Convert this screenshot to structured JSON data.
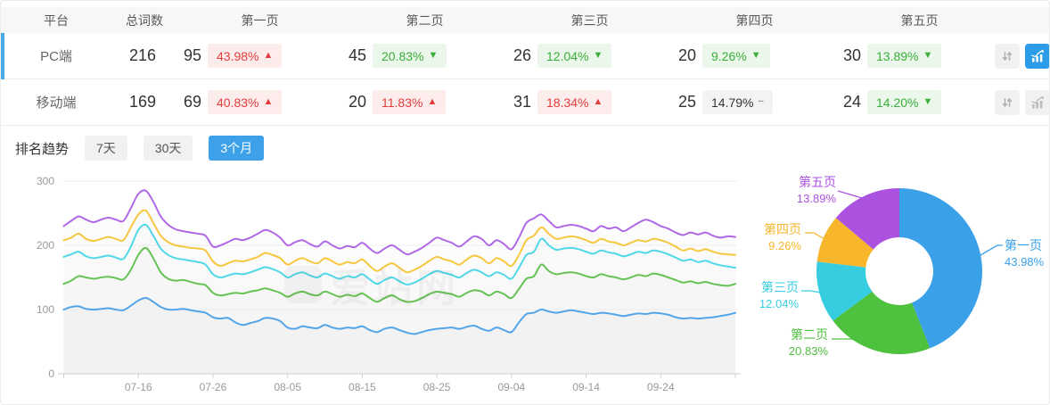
{
  "colors": {
    "accent_blue": "#3da1e9",
    "selected_row_bar": "#4aaae8",
    "up_red": "#e23c3c",
    "down_green": "#3aae3a",
    "active_icon_button": "#2d9ce8"
  },
  "watermark": "爱站网",
  "table": {
    "columns": [
      "平台",
      "总词数",
      "第一页",
      "第二页",
      "第三页",
      "第四页",
      "第五页"
    ],
    "sort_glyph": "↓↑",
    "rows": [
      {
        "platform": "PC端",
        "total": "216",
        "selected": true,
        "chart_active": true,
        "pages": [
          {
            "count": "95",
            "pct": "43.98%",
            "arrow": "▲",
            "tone": "red"
          },
          {
            "count": "45",
            "pct": "20.83%",
            "arrow": "▼",
            "tone": "green"
          },
          {
            "count": "26",
            "pct": "12.04%",
            "arrow": "▼",
            "tone": "green"
          },
          {
            "count": "20",
            "pct": "9.26%",
            "arrow": "▼",
            "tone": "green"
          },
          {
            "count": "30",
            "pct": "13.89%",
            "arrow": "▼",
            "tone": "green"
          }
        ]
      },
      {
        "platform": "移动端",
        "total": "169",
        "selected": false,
        "chart_active": false,
        "pages": [
          {
            "count": "69",
            "pct": "40.83%",
            "arrow": "▲",
            "tone": "red"
          },
          {
            "count": "20",
            "pct": "11.83%",
            "arrow": "▲",
            "tone": "red"
          },
          {
            "count": "31",
            "pct": "18.34%",
            "arrow": "▲",
            "tone": "red"
          },
          {
            "count": "25",
            "pct": "14.79%",
            "arrow": "−",
            "tone": "gray"
          },
          {
            "count": "24",
            "pct": "14.20%",
            "arrow": "▼",
            "tone": "green"
          }
        ]
      }
    ]
  },
  "trend": {
    "label": "排名趋势",
    "options": [
      {
        "label": "7天",
        "active": false
      },
      {
        "label": "30天",
        "active": false
      },
      {
        "label": "3个月",
        "active": true
      }
    ]
  },
  "chart_data": [
    {
      "type": "line",
      "title": "排名趋势 (3个月) — PC端 累计词数",
      "days": 90,
      "x_tick_days": [
        0,
        10,
        20,
        30,
        40,
        50,
        60,
        70,
        80,
        90
      ],
      "x_labels": [
        "07-16",
        "07-26",
        "08-05",
        "08-15",
        "08-25",
        "09-04",
        "09-14",
        "09-24"
      ],
      "x_label_days": [
        10,
        20,
        30,
        40,
        50,
        60,
        70,
        80
      ],
      "ylim": [
        0,
        300
      ],
      "y_ticks": [
        0,
        100,
        200,
        300
      ],
      "grid": true,
      "series": [
        {
          "name": "第一页",
          "color": "#54a5e8",
          "values": [
            100,
            104,
            105,
            101,
            100,
            101,
            102,
            100,
            99,
            106,
            114,
            118,
            112,
            104,
            100,
            100,
            101,
            99,
            97,
            95,
            88,
            86,
            87,
            80,
            76,
            79,
            82,
            87,
            86,
            82,
            72,
            70,
            74,
            72,
            71,
            76,
            72,
            70,
            72,
            71,
            74,
            68,
            65,
            70,
            72,
            68,
            64,
            62,
            65,
            68,
            70,
            71,
            72,
            70,
            73,
            75,
            70,
            67,
            72,
            68,
            65,
            80,
            93,
            95,
            100,
            97,
            95,
            97,
            99,
            97,
            95,
            93,
            95,
            94,
            92,
            90,
            92,
            94,
            93,
            95,
            94,
            92,
            88,
            86,
            87,
            86,
            87,
            88,
            90,
            92,
            95
          ]
        },
        {
          "name": "第二页",
          "color": "#66c255",
          "values": [
            140,
            145,
            152,
            150,
            148,
            150,
            151,
            149,
            147,
            162,
            185,
            196,
            180,
            158,
            148,
            145,
            146,
            143,
            140,
            138,
            126,
            122,
            124,
            126,
            125,
            128,
            130,
            133,
            130,
            126,
            120,
            125,
            128,
            124,
            122,
            128,
            124,
            120,
            123,
            121,
            125,
            118,
            112,
            118,
            122,
            116,
            112,
            113,
            118,
            124,
            128,
            126,
            124,
            120,
            126,
            130,
            128,
            122,
            128,
            124,
            118,
            132,
            148,
            152,
            170,
            160,
            155,
            157,
            158,
            156,
            152,
            150,
            155,
            152,
            150,
            147,
            150,
            154,
            152,
            156,
            154,
            150,
            146,
            142,
            144,
            141,
            143,
            140,
            138,
            137,
            140
          ]
        },
        {
          "name": "第三页",
          "color": "#50d8e8",
          "values": [
            182,
            186,
            190,
            183,
            180,
            182,
            184,
            181,
            179,
            198,
            224,
            232,
            215,
            195,
            185,
            180,
            178,
            176,
            174,
            170,
            155,
            150,
            153,
            156,
            155,
            158,
            162,
            166,
            163,
            158,
            150,
            155,
            158,
            153,
            150,
            156,
            152,
            148,
            152,
            150,
            155,
            147,
            140,
            146,
            150,
            144,
            139,
            142,
            148,
            155,
            160,
            157,
            154,
            150,
            157,
            162,
            158,
            152,
            158,
            154,
            148,
            165,
            185,
            190,
            210,
            200,
            193,
            195,
            196,
            194,
            190,
            187,
            192,
            189,
            187,
            183,
            186,
            190,
            188,
            192,
            190,
            186,
            181,
            176,
            178,
            174,
            176,
            172,
            169,
            167,
            165
          ]
        },
        {
          "name": "第四页",
          "color": "#f6c73f",
          "values": [
            208,
            212,
            218,
            210,
            207,
            210,
            213,
            210,
            208,
            228,
            248,
            254,
            235,
            215,
            205,
            200,
            198,
            196,
            195,
            192,
            175,
            168,
            172,
            176,
            175,
            178,
            182,
            188,
            185,
            180,
            170,
            176,
            180,
            175,
            172,
            180,
            175,
            170,
            174,
            172,
            178,
            168,
            160,
            167,
            172,
            165,
            158,
            162,
            168,
            176,
            182,
            178,
            175,
            170,
            178,
            184,
            180,
            172,
            180,
            175,
            168,
            185,
            208,
            215,
            228,
            218,
            210,
            212,
            214,
            212,
            208,
            204,
            210,
            206,
            204,
            200,
            204,
            208,
            206,
            210,
            208,
            204,
            198,
            192,
            195,
            191,
            194,
            190,
            187,
            186,
            185
          ]
        },
        {
          "name": "第五页",
          "color": "#b168e6",
          "values": [
            230,
            238,
            245,
            240,
            236,
            240,
            243,
            240,
            238,
            258,
            280,
            285,
            268,
            245,
            232,
            225,
            222,
            220,
            218,
            215,
            198,
            200,
            205,
            210,
            208,
            212,
            218,
            224,
            220,
            212,
            200,
            205,
            208,
            202,
            198,
            206,
            200,
            195,
            199,
            197,
            204,
            195,
            188,
            195,
            200,
            193,
            186,
            190,
            196,
            204,
            212,
            208,
            204,
            198,
            206,
            214,
            210,
            200,
            208,
            202,
            194,
            212,
            235,
            242,
            248,
            238,
            228,
            230,
            232,
            230,
            226,
            222,
            230,
            226,
            228,
            222,
            228,
            235,
            240,
            236,
            230,
            226,
            220,
            216,
            220,
            217,
            220,
            215,
            212,
            214,
            213
          ]
        }
      ]
    },
    {
      "type": "pie",
      "title": "PC端 页面分布",
      "donut": true,
      "slices": [
        {
          "label": "第一页",
          "value": 43.98,
          "display": "43.98%",
          "color": "#3aa0e8"
        },
        {
          "label": "第二页",
          "value": 20.83,
          "display": "20.83%",
          "color": "#4ec13f"
        },
        {
          "label": "第三页",
          "value": 12.04,
          "display": "12.04%",
          "color": "#36cde0"
        },
        {
          "label": "第四页",
          "value": 9.26,
          "display": "9.26%",
          "color": "#f8b62c"
        },
        {
          "label": "第五页",
          "value": 13.89,
          "display": "13.89%",
          "color": "#ac52e0"
        }
      ]
    }
  ]
}
